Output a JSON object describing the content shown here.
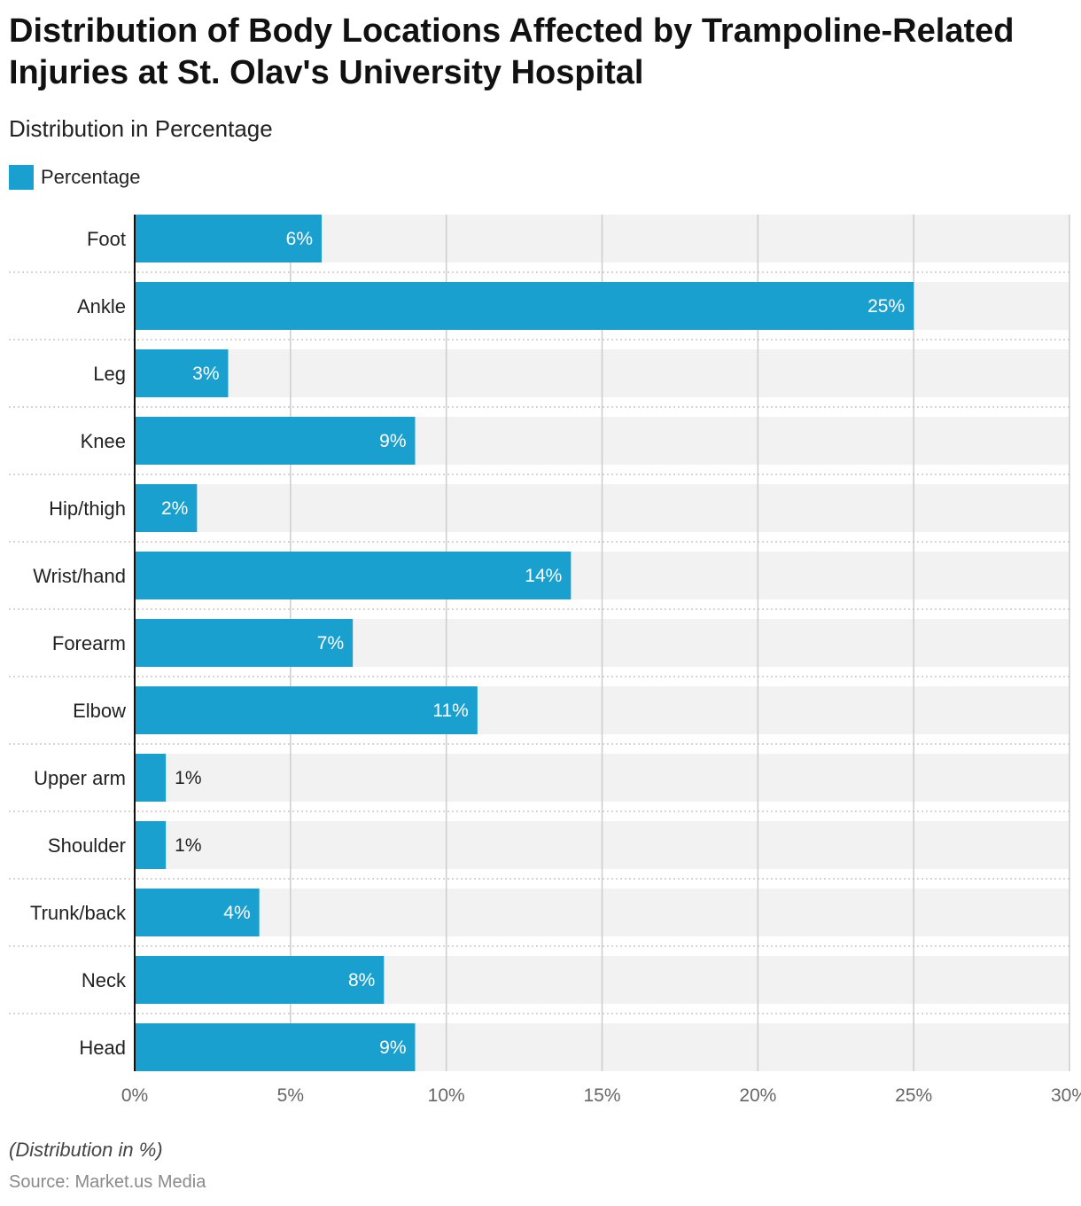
{
  "title": "Distribution of Body Locations Affected by Trampoline-Related Injuries at St. Olav's University Hospital",
  "subtitle": "Distribution in Percentage",
  "legend_label": "Percentage",
  "footnote": "(Distribution in %)",
  "source": "Source: Market.us Media",
  "colors": {
    "bar": "#1aa0cf",
    "band": "#f2f2f2",
    "grid": "#cccccc",
    "axis": "#111111"
  },
  "chart_data": {
    "type": "bar",
    "orientation": "horizontal",
    "title": "Distribution of Body Locations Affected by Trampoline-Related Injuries at St. Olav's University Hospital",
    "subtitle": "Distribution in Percentage",
    "categories": [
      "Foot",
      "Ankle",
      "Leg",
      "Knee",
      "Hip/thigh",
      "Wrist/hand",
      "Forearm",
      "Elbow",
      "Upper arm",
      "Shoulder",
      "Trunk/back",
      "Neck",
      "Head"
    ],
    "series": [
      {
        "name": "Percentage",
        "values": [
          6,
          25,
          3,
          9,
          2,
          14,
          7,
          11,
          1,
          1,
          4,
          8,
          9
        ]
      }
    ],
    "data_labels": [
      "6%",
      "25%",
      "3%",
      "9%",
      "2%",
      "14%",
      "7%",
      "11%",
      "1%",
      "1%",
      "4%",
      "8%",
      "9%"
    ],
    "xlim": [
      0,
      30
    ],
    "xticks": [
      0,
      5,
      10,
      15,
      20,
      25,
      30
    ],
    "xtick_labels": [
      "0%",
      "5%",
      "10%",
      "15%",
      "20%",
      "25%",
      "30%"
    ],
    "xlabel": "",
    "ylabel": "",
    "legend": "top-left",
    "grid": true
  }
}
